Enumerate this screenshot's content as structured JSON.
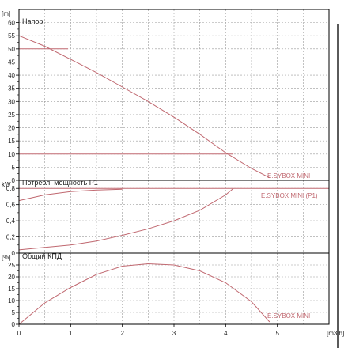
{
  "colors": {
    "curve": "#c06870",
    "frame": "#000000",
    "grid": "#9a9a9a",
    "text": "#222222"
  },
  "x_axis": {
    "unit": "[m3/h]",
    "ticks": [
      0,
      1,
      2,
      3,
      4,
      5
    ]
  },
  "chart_data": [
    {
      "type": "line",
      "title": "Напор",
      "y_unit": "[m]",
      "ylim": [
        0,
        65
      ],
      "y_ticks": [
        0,
        5,
        10,
        15,
        20,
        25,
        30,
        35,
        40,
        45,
        50,
        55,
        60
      ],
      "xlim": [
        0,
        6
      ],
      "grid": true,
      "series": [
        {
          "name": "E.SYBOX MINI",
          "x": [
            0,
            0.5,
            1,
            1.5,
            2,
            2.5,
            3,
            3.5,
            4,
            4.5,
            4.85
          ],
          "y": [
            55,
            51,
            46,
            41,
            35.5,
            30,
            24,
            17.5,
            10.5,
            4.5,
            1
          ]
        },
        {
          "x": [
            0,
            0.95
          ],
          "y": [
            50,
            50
          ]
        },
        {
          "x": [
            0,
            4.15
          ],
          "y": [
            10,
            10
          ]
        }
      ]
    },
    {
      "type": "line",
      "title": "Потребл. мощность P1",
      "y_unit": "kW",
      "ylim": [
        0,
        0.9
      ],
      "y_ticks": [
        0,
        0.2,
        0.4,
        0.6,
        0.8
      ],
      "y_tick_labels": [
        "0",
        "0,2",
        "0,4",
        "0,6",
        "0,8"
      ],
      "xlim": [
        0,
        6
      ],
      "grid": true,
      "series": [
        {
          "name": "E.SYBOX MINI (P1)",
          "x": [
            0,
            1.5,
            2.5,
            3,
            4.15,
            6
          ],
          "y": [
            0.8,
            0.8,
            0.8,
            0.8,
            0.8,
            0.8
          ]
        },
        {
          "x": [
            0,
            0.5,
            1,
            1.5,
            2
          ],
          "y": [
            0.65,
            0.72,
            0.76,
            0.78,
            0.79
          ]
        },
        {
          "x": [
            0,
            0.5,
            1,
            1.5,
            2,
            2.5,
            3,
            3.5,
            4,
            4.15
          ],
          "y": [
            0.04,
            0.07,
            0.1,
            0.15,
            0.22,
            0.3,
            0.4,
            0.53,
            0.72,
            0.8
          ]
        }
      ]
    },
    {
      "type": "line",
      "title": "Общий КПД",
      "y_unit": "[%]",
      "ylim": [
        0,
        30
      ],
      "y_ticks": [
        0,
        5,
        10,
        15,
        20,
        25
      ],
      "xlim": [
        0,
        6
      ],
      "grid": true,
      "series": [
        {
          "name": "E.SYBOX MINI",
          "x": [
            0,
            0.5,
            1,
            1.5,
            2,
            2.5,
            3,
            3.5,
            4,
            4.5,
            4.85
          ],
          "y": [
            0,
            9,
            15.5,
            21,
            24.5,
            25.5,
            25,
            22.5,
            17.5,
            9.5,
            1
          ]
        }
      ]
    }
  ]
}
